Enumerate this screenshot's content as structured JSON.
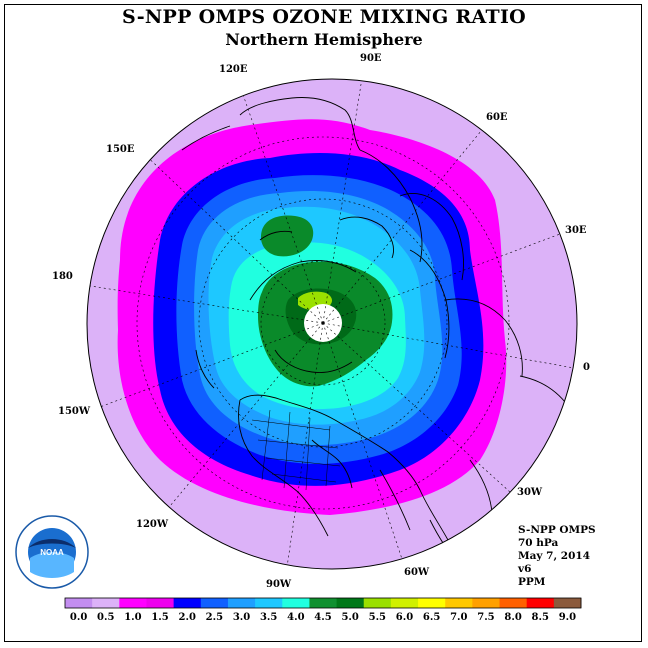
{
  "title": "S-NPP OMPS OZONE MIXING RATIO",
  "subtitle": "Northern Hemisphere",
  "longitude_labels": [
    "90E",
    "60E",
    "30E",
    "0",
    "30W",
    "60W",
    "90W",
    "120W",
    "150W",
    "180",
    "150E",
    "120E"
  ],
  "info": {
    "instrument": "S-NPP OMPS",
    "level": "70 hPa",
    "date": "May 7, 2014",
    "version": "v6",
    "units": "PPM"
  },
  "logo_text": "NOAA",
  "logo_ring_text": "NATIONAL OCEANIC AND ATMOSPHERIC ADMINISTRATION · U.S. DEPARTMENT OF COMMERCE",
  "colorbar": {
    "ticks": [
      "0.0",
      "0.5",
      "1.0",
      "1.5",
      "2.0",
      "2.5",
      "3.0",
      "3.5",
      "4.0",
      "4.5",
      "5.0",
      "5.5",
      "6.0",
      "6.5",
      "7.0",
      "7.5",
      "8.0",
      "8.5",
      "9.0"
    ],
    "colors": [
      "#c38ef0",
      "#dcb2f8",
      "#ff00ff",
      "#ee00ee",
      "#0000ff",
      "#1060ff",
      "#1f9fff",
      "#1ec8ff",
      "#20ffe0",
      "#109030",
      "#007818",
      "#9ae000",
      "#d0f000",
      "#ffff00",
      "#ffc800",
      "#ffa000",
      "#ff6000",
      "#ff0000",
      "#8b5a3c"
    ]
  },
  "colors": {
    "bg_outer": "#dcb2f8",
    "magenta": "#ff00ff",
    "blue": "#0000ff",
    "mid_blue": "#1060ff",
    "sky": "#1f9fff",
    "light_sky": "#1ec8ff",
    "cyan": "#20ffe0",
    "green": "#0a8a2a",
    "dark_green": "#006a18",
    "yellow_green": "#9ae000",
    "pole": "#ffffff"
  }
}
